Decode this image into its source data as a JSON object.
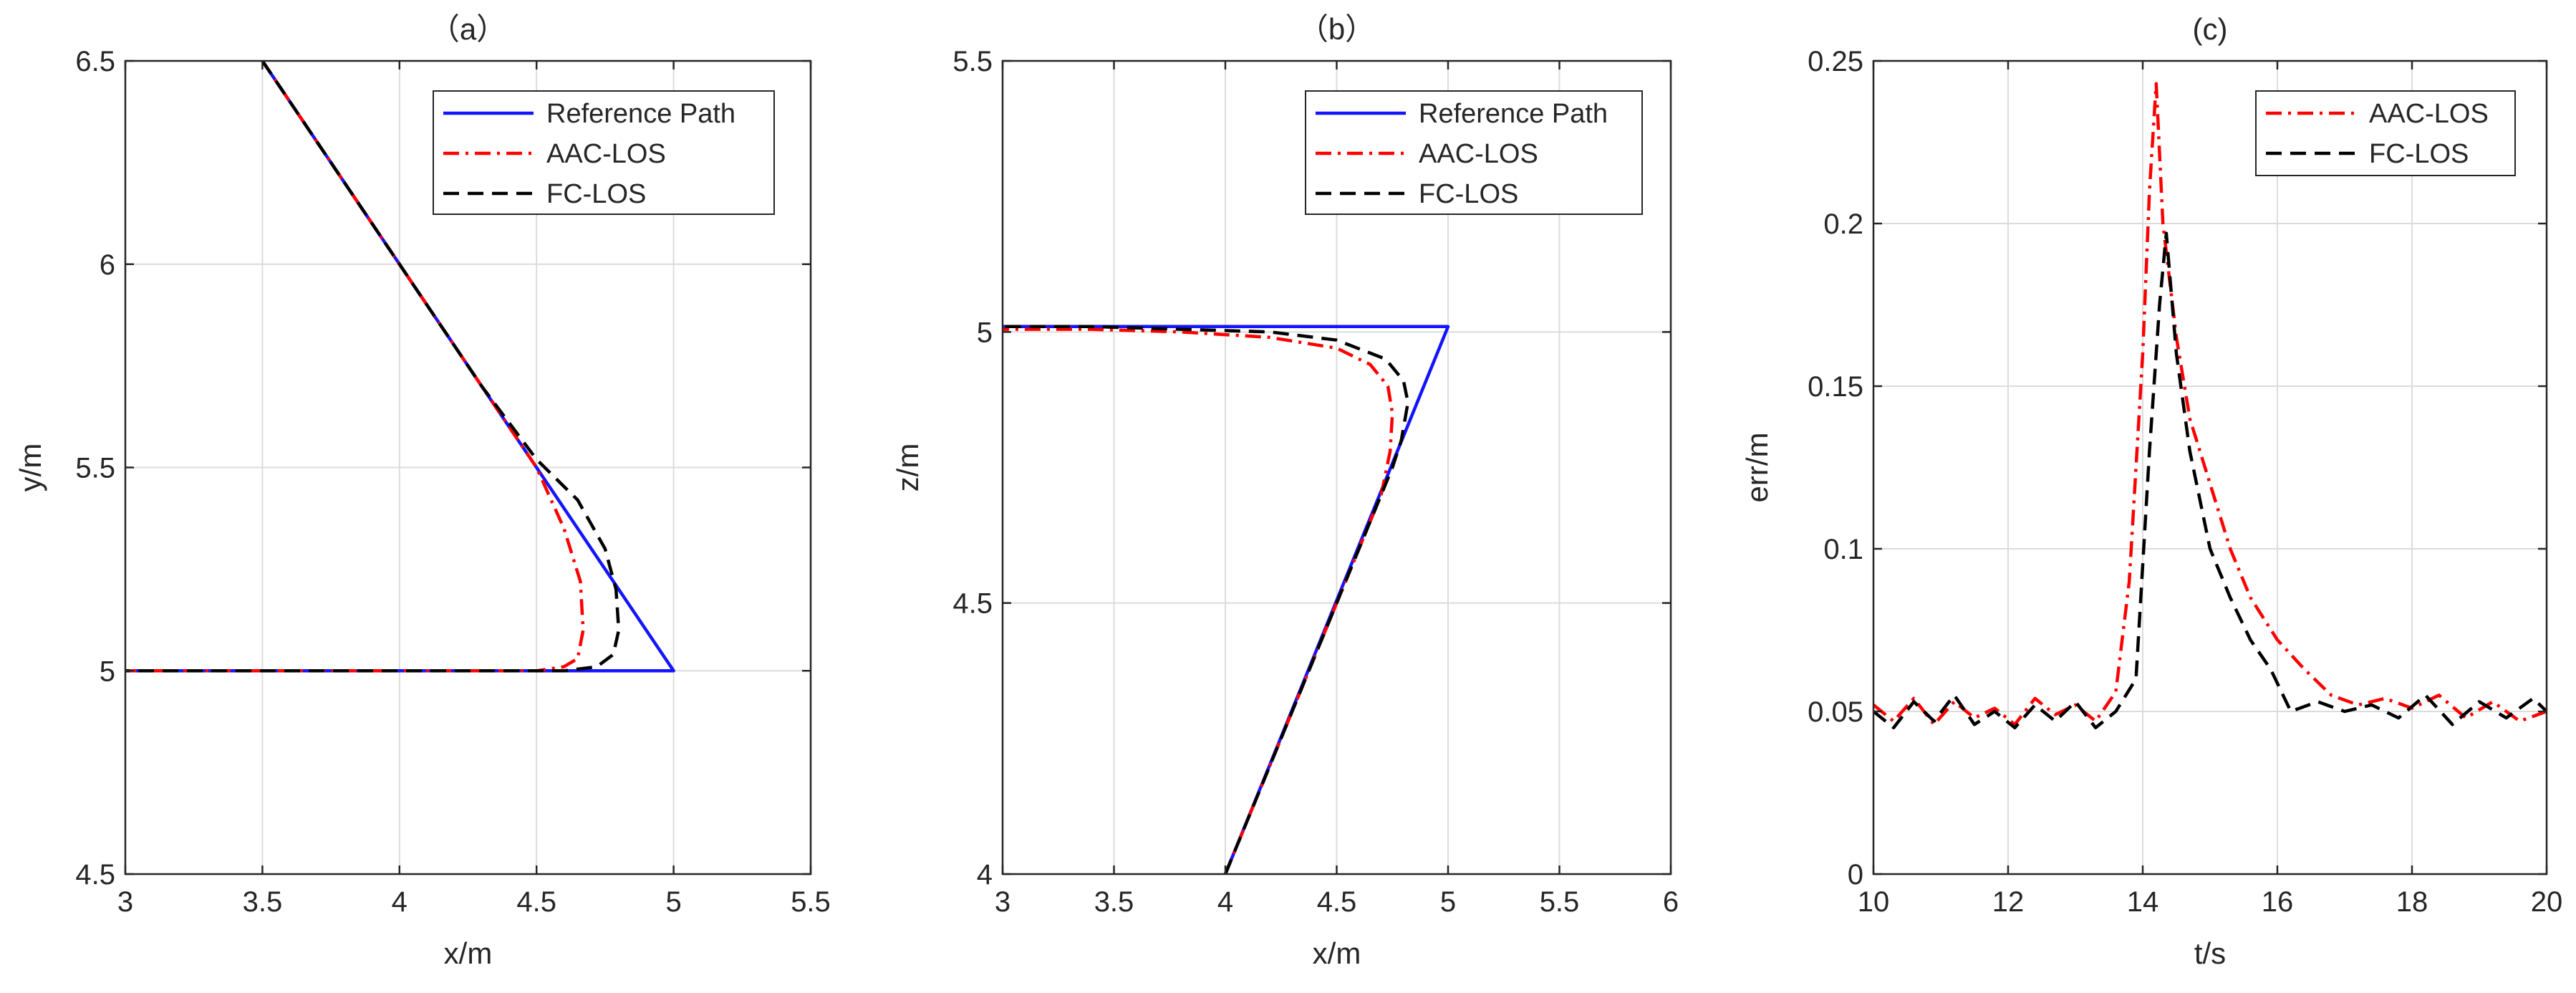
{
  "colors": {
    "reference": "#1414ff",
    "aac": "#ff0000",
    "fc": "#000000",
    "axis": "#262626",
    "grid": "#dcdcdc"
  },
  "chart_data": [
    {
      "type": "line",
      "title": "（a）",
      "xlabel": "x/m",
      "ylabel": "y/m",
      "xlim": [
        3,
        5.5
      ],
      "ylim": [
        4.5,
        6.5
      ],
      "xticks": [
        3,
        3.5,
        4,
        4.5,
        5,
        5.5
      ],
      "xtick_labels": [
        "3",
        "3.5",
        "4",
        "4.5",
        "5",
        "5.5"
      ],
      "yticks": [
        4.5,
        5,
        5.5,
        6,
        6.5
      ],
      "ytick_labels": [
        "4.5",
        "5",
        "5.5",
        "6",
        "6.5"
      ],
      "grid": true,
      "legend_position": "top-right",
      "series": [
        {
          "name": "Reference Path",
          "style": "solid",
          "color": "#1414ff",
          "x": [
            3.5,
            5.0,
            3.0
          ],
          "y": [
            6.5,
            5.0,
            5.0
          ]
        },
        {
          "name": "AAC-LOS",
          "style": "dashdot",
          "color": "#ff0000",
          "x": [
            3.5,
            4.0,
            4.3,
            4.5,
            4.6,
            4.66,
            4.67,
            4.65,
            4.6,
            4.5,
            4.0,
            3.0
          ],
          "y": [
            6.5,
            6.0,
            5.7,
            5.5,
            5.35,
            5.22,
            5.1,
            5.03,
            5.01,
            5.0,
            5.0,
            5.0
          ]
        },
        {
          "name": "FC-LOS",
          "style": "dashed",
          "color": "#000000",
          "x": [
            3.5,
            4.0,
            4.3,
            4.5,
            4.65,
            4.75,
            4.79,
            4.8,
            4.78,
            4.72,
            4.6,
            4.0,
            3.0
          ],
          "y": [
            6.5,
            6.0,
            5.7,
            5.52,
            5.42,
            5.3,
            5.2,
            5.1,
            5.04,
            5.01,
            5.0,
            5.0,
            5.0
          ]
        }
      ]
    },
    {
      "type": "line",
      "title": "（b）",
      "xlabel": "x/m",
      "ylabel": "z/m",
      "xlim": [
        3,
        6
      ],
      "ylim": [
        4,
        5.5
      ],
      "xticks": [
        3,
        3.5,
        4,
        4.5,
        5,
        5.5,
        6
      ],
      "xtick_labels": [
        "3",
        "3.5",
        "4",
        "4.5",
        "5",
        "5.5",
        "6"
      ],
      "yticks": [
        4,
        4.5,
        5,
        5.5
      ],
      "ytick_labels": [
        "4",
        "4.5",
        "5",
        "5.5"
      ],
      "grid": true,
      "legend_position": "top-right",
      "series": [
        {
          "name": "Reference Path",
          "style": "solid",
          "color": "#1414ff",
          "x": [
            4.0,
            5.0,
            3.0
          ],
          "y": [
            4.0,
            5.01,
            5.01
          ]
        },
        {
          "name": "AAC-LOS",
          "style": "dashdot",
          "color": "#ff0000",
          "x": [
            4.0,
            4.5,
            4.7,
            4.74,
            4.75,
            4.73,
            4.65,
            4.5,
            4.2,
            3.8,
            3.4,
            3.0
          ],
          "y": [
            4.0,
            4.5,
            4.7,
            4.78,
            4.85,
            4.9,
            4.94,
            4.97,
            4.99,
            5.0,
            5.005,
            5.005
          ]
        },
        {
          "name": "FC-LOS",
          "style": "dashed",
          "color": "#000000",
          "x": [
            4.0,
            4.5,
            4.75,
            4.79,
            4.82,
            4.8,
            4.72,
            4.5,
            4.2,
            3.8,
            3.4,
            3.0
          ],
          "y": [
            4.0,
            4.5,
            4.75,
            4.8,
            4.87,
            4.91,
            4.95,
            4.985,
            5.0,
            5.005,
            5.01,
            5.01
          ]
        }
      ]
    },
    {
      "type": "line",
      "title": "(c)",
      "xlabel": "t/s",
      "ylabel": "err/m",
      "xlim": [
        10,
        20
      ],
      "ylim": [
        0,
        0.25
      ],
      "xticks": [
        10,
        12,
        14,
        16,
        18,
        20
      ],
      "xtick_labels": [
        "10",
        "12",
        "14",
        "16",
        "18",
        "20"
      ],
      "yticks": [
        0,
        0.05,
        0.1,
        0.15,
        0.2,
        0.25
      ],
      "ytick_labels": [
        "0",
        "0.05",
        "0.1",
        "0.15",
        "0.2",
        "0.25"
      ],
      "grid": true,
      "legend_position": "top-right",
      "series": [
        {
          "name": "AAC-LOS",
          "style": "dashdot",
          "color": "#ff0000",
          "x": [
            10.0,
            10.3,
            10.6,
            10.9,
            11.2,
            11.5,
            11.8,
            12.1,
            12.4,
            12.7,
            13.0,
            13.3,
            13.6,
            13.8,
            14.0,
            14.1,
            14.2,
            14.3,
            14.5,
            14.7,
            15.0,
            15.3,
            15.6,
            16.0,
            16.4,
            16.8,
            17.2,
            17.6,
            18.0,
            18.4,
            18.8,
            19.2,
            19.6,
            20.0
          ],
          "y": [
            0.052,
            0.047,
            0.054,
            0.046,
            0.053,
            0.048,
            0.051,
            0.046,
            0.054,
            0.049,
            0.052,
            0.047,
            0.056,
            0.09,
            0.16,
            0.21,
            0.243,
            0.2,
            0.165,
            0.14,
            0.12,
            0.1,
            0.085,
            0.072,
            0.063,
            0.055,
            0.052,
            0.054,
            0.051,
            0.055,
            0.048,
            0.053,
            0.047,
            0.05
          ]
        },
        {
          "name": "FC-LOS",
          "style": "dashed",
          "color": "#000000",
          "x": [
            10.0,
            10.3,
            10.6,
            10.9,
            11.2,
            11.5,
            11.8,
            12.1,
            12.4,
            12.7,
            13.0,
            13.3,
            13.6,
            13.9,
            14.1,
            14.25,
            14.35,
            14.5,
            14.7,
            15.0,
            15.3,
            15.6,
            15.9,
            16.2,
            16.6,
            17.0,
            17.4,
            17.8,
            18.2,
            18.6,
            19.0,
            19.4,
            19.8,
            20.0
          ],
          "y": [
            0.05,
            0.045,
            0.053,
            0.047,
            0.055,
            0.046,
            0.05,
            0.045,
            0.052,
            0.047,
            0.053,
            0.045,
            0.05,
            0.06,
            0.13,
            0.175,
            0.197,
            0.16,
            0.13,
            0.1,
            0.085,
            0.072,
            0.063,
            0.05,
            0.053,
            0.05,
            0.052,
            0.048,
            0.055,
            0.046,
            0.053,
            0.048,
            0.054,
            0.05
          ]
        }
      ]
    }
  ]
}
